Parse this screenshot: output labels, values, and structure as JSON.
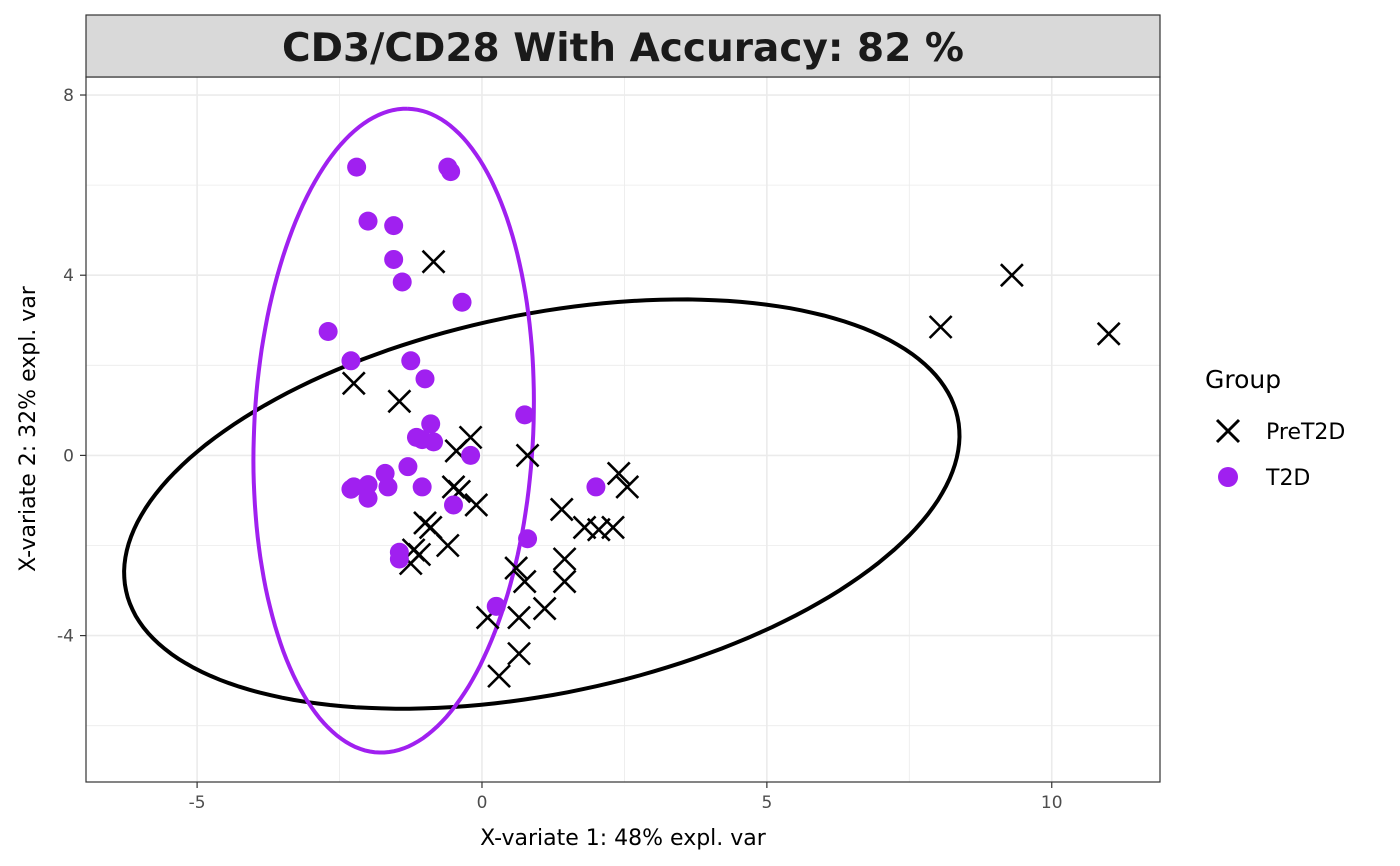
{
  "chart_data": {
    "type": "scatter",
    "title": "CD3/CD28 With Accuracy: 82 %",
    "xlabel": "X-variate 1: 48% expl. var",
    "ylabel": "X-variate 2: 32% expl. var",
    "xlim": [
      -6.95,
      11.9
    ],
    "ylim": [
      -7.25,
      8.4
    ],
    "x_ticks": [
      -5,
      0,
      5,
      10
    ],
    "x_tick_labels": [
      "-5",
      "0",
      "5",
      "10"
    ],
    "y_ticks": [
      -4,
      0,
      4,
      8
    ],
    "y_tick_labels": [
      "-4",
      "0",
      "4",
      "8"
    ],
    "grid": true,
    "legend": {
      "title": "Group",
      "placement": "right",
      "entries": [
        "PreT2D",
        "T2D"
      ]
    },
    "colors": {
      "PreT2D": "#000000",
      "T2D": "#a020f0"
    },
    "series": [
      {
        "name": "PreT2D",
        "marker": "x",
        "color": "#000000",
        "points": [
          [
            -0.85,
            4.3
          ],
          [
            -2.25,
            1.6
          ],
          [
            -1.45,
            1.2
          ],
          [
            -0.2,
            0.4
          ],
          [
            -0.45,
            0.1
          ],
          [
            0.8,
            0.0
          ],
          [
            -0.5,
            -0.7
          ],
          [
            -0.4,
            -0.8
          ],
          [
            -0.1,
            -1.1
          ],
          [
            -1.0,
            -1.5
          ],
          [
            -0.9,
            -1.6
          ],
          [
            -1.2,
            -2.1
          ],
          [
            -1.1,
            -2.2
          ],
          [
            -0.6,
            -2.0
          ],
          [
            -1.25,
            -2.4
          ],
          [
            1.4,
            -1.2
          ],
          [
            1.8,
            -1.6
          ],
          [
            2.05,
            -1.65
          ],
          [
            2.3,
            -1.6
          ],
          [
            2.4,
            -0.4
          ],
          [
            2.55,
            -0.7
          ],
          [
            1.45,
            -2.3
          ],
          [
            1.45,
            -2.8
          ],
          [
            0.6,
            -2.5
          ],
          [
            0.75,
            -2.8
          ],
          [
            1.1,
            -3.4
          ],
          [
            0.1,
            -3.6
          ],
          [
            0.65,
            -3.6
          ],
          [
            0.65,
            -4.4
          ],
          [
            0.3,
            -4.9
          ],
          [
            8.05,
            2.85
          ],
          [
            9.3,
            4.0
          ],
          [
            11.0,
            2.7
          ]
        ]
      },
      {
        "name": "T2D",
        "marker": "circle",
        "color": "#a020f0",
        "points": [
          [
            -2.2,
            6.4
          ],
          [
            -0.6,
            6.4
          ],
          [
            -0.55,
            6.3
          ],
          [
            -2.0,
            5.2
          ],
          [
            -1.55,
            5.1
          ],
          [
            -1.55,
            4.35
          ],
          [
            -1.4,
            3.85
          ],
          [
            -0.35,
            3.4
          ],
          [
            -2.7,
            2.75
          ],
          [
            -2.3,
            2.1
          ],
          [
            -1.25,
            2.1
          ],
          [
            -1.0,
            1.7
          ],
          [
            0.75,
            0.9
          ],
          [
            -0.9,
            0.7
          ],
          [
            -1.15,
            0.4
          ],
          [
            -1.05,
            0.35
          ],
          [
            -0.85,
            0.3
          ],
          [
            -0.2,
            0.0
          ],
          [
            -1.3,
            -0.25
          ],
          [
            -1.7,
            -0.4
          ],
          [
            -2.25,
            -0.7
          ],
          [
            -2.3,
            -0.75
          ],
          [
            -2.0,
            -0.65
          ],
          [
            -1.65,
            -0.7
          ],
          [
            -1.05,
            -0.7
          ],
          [
            -2.0,
            -0.95
          ],
          [
            2.0,
            -0.7
          ],
          [
            -0.5,
            -1.1
          ],
          [
            0.8,
            -1.85
          ],
          [
            -1.45,
            -2.15
          ],
          [
            -1.45,
            -2.3
          ],
          [
            0.25,
            -3.35
          ]
        ]
      }
    ],
    "ellipses": [
      {
        "group": "PreT2D",
        "color": "#000000",
        "center": [
          1.05,
          -1.08
        ],
        "semi_major": 7.56,
        "semi_minor": 4.15,
        "angle_deg": 17.0
      },
      {
        "group": "T2D",
        "color": "#a020f0",
        "center": [
          -1.55,
          0.55
        ],
        "semi_major": 7.15,
        "semi_minor": 2.45,
        "angle_deg": 88.0
      }
    ]
  }
}
